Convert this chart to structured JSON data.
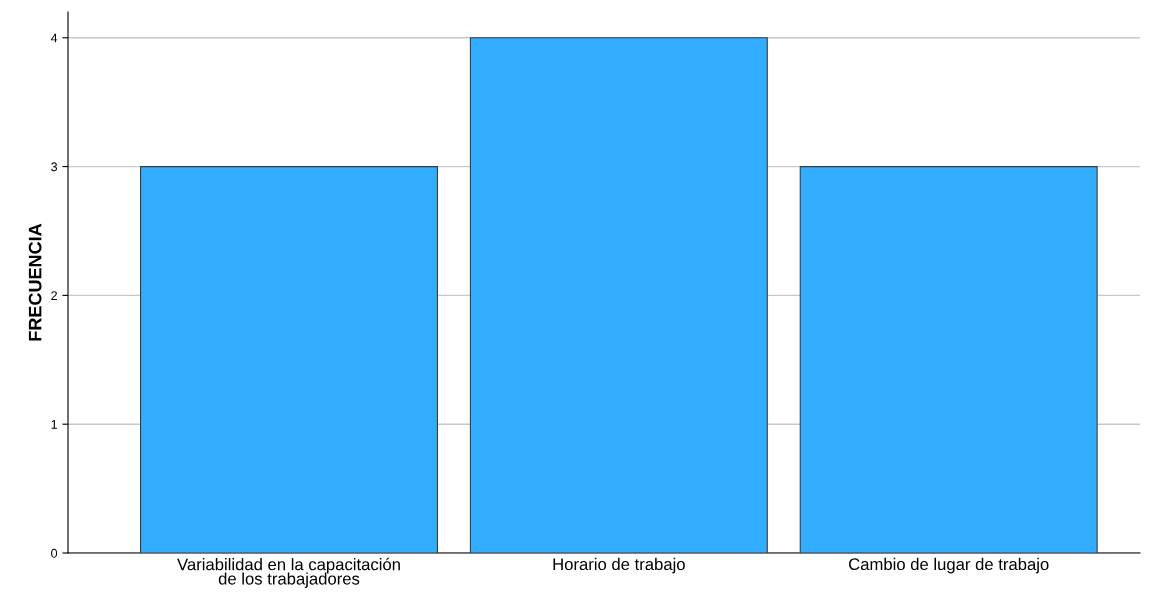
{
  "chart_data": {
    "type": "bar",
    "ylabel": "FRECUENCIA",
    "categories": [
      "Variabilidad en la capacitación\nde los trabajadores",
      "Horario de trabajo",
      "Cambio de lugar de trabajo"
    ],
    "values": [
      3,
      4,
      3
    ],
    "color": "#33adff",
    "ylim": [
      0,
      4.2
    ],
    "yticks": [
      0,
      1,
      2,
      3,
      4
    ],
    "grid": "y"
  }
}
